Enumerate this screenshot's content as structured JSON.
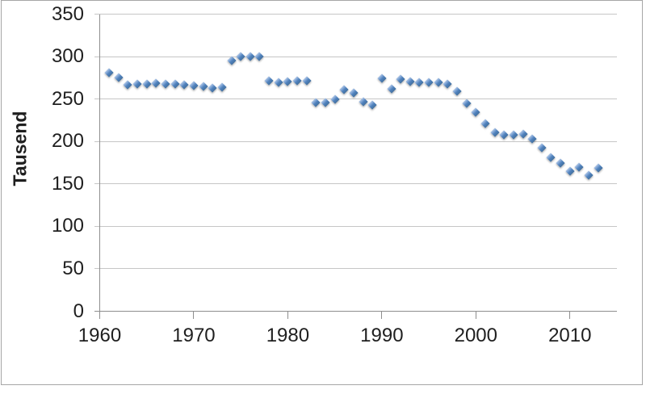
{
  "chart_data": {
    "type": "scatter",
    "title": "",
    "xlabel": "",
    "ylabel": "Tausend",
    "legend": "none",
    "grid": "horizontal",
    "marker": "diamond",
    "marker_color": "#4F81BD",
    "marker_highlight": "#AEC6E8",
    "marker_dark": "#44719F",
    "gridline_color": "#C6C6C6",
    "axis_color": "#8E8E8E",
    "text_color": "#1F1F1F",
    "border_color": "#A6A6A6",
    "background": "#FFFFFF",
    "xlim": [
      1960,
      2015
    ],
    "ylim": [
      0,
      350
    ],
    "x_ticks": [
      1960,
      1970,
      1980,
      1990,
      2000,
      2010
    ],
    "y_ticks": [
      350,
      300,
      250,
      200,
      150,
      100,
      50,
      0
    ],
    "series": [
      {
        "name": "",
        "x": [
          1961,
          1962,
          1963,
          1964,
          1965,
          1966,
          1967,
          1968,
          1969,
          1970,
          1971,
          1972,
          1973,
          1974,
          1975,
          1976,
          1977,
          1978,
          1979,
          1980,
          1981,
          1982,
          1983,
          1984,
          1985,
          1986,
          1987,
          1988,
          1989,
          1990,
          1991,
          1992,
          1993,
          1994,
          1995,
          1996,
          1997,
          1998,
          1999,
          2000,
          2001,
          2002,
          2003,
          2004,
          2005,
          2006,
          2007,
          2008,
          2009,
          2010,
          2011,
          2012,
          2013
        ],
        "y": [
          281,
          275,
          267,
          268,
          268,
          269,
          268,
          268,
          267,
          266,
          265,
          263,
          264,
          295,
          300,
          300,
          300,
          272,
          270,
          271,
          272,
          272,
          246,
          246,
          250,
          261,
          257,
          247,
          243,
          274,
          262,
          273,
          271,
          270,
          270,
          270,
          268,
          259,
          245,
          234,
          221,
          211,
          208,
          208,
          209,
          203,
          193,
          181,
          175,
          165,
          170,
          160,
          169
        ]
      }
    ]
  }
}
